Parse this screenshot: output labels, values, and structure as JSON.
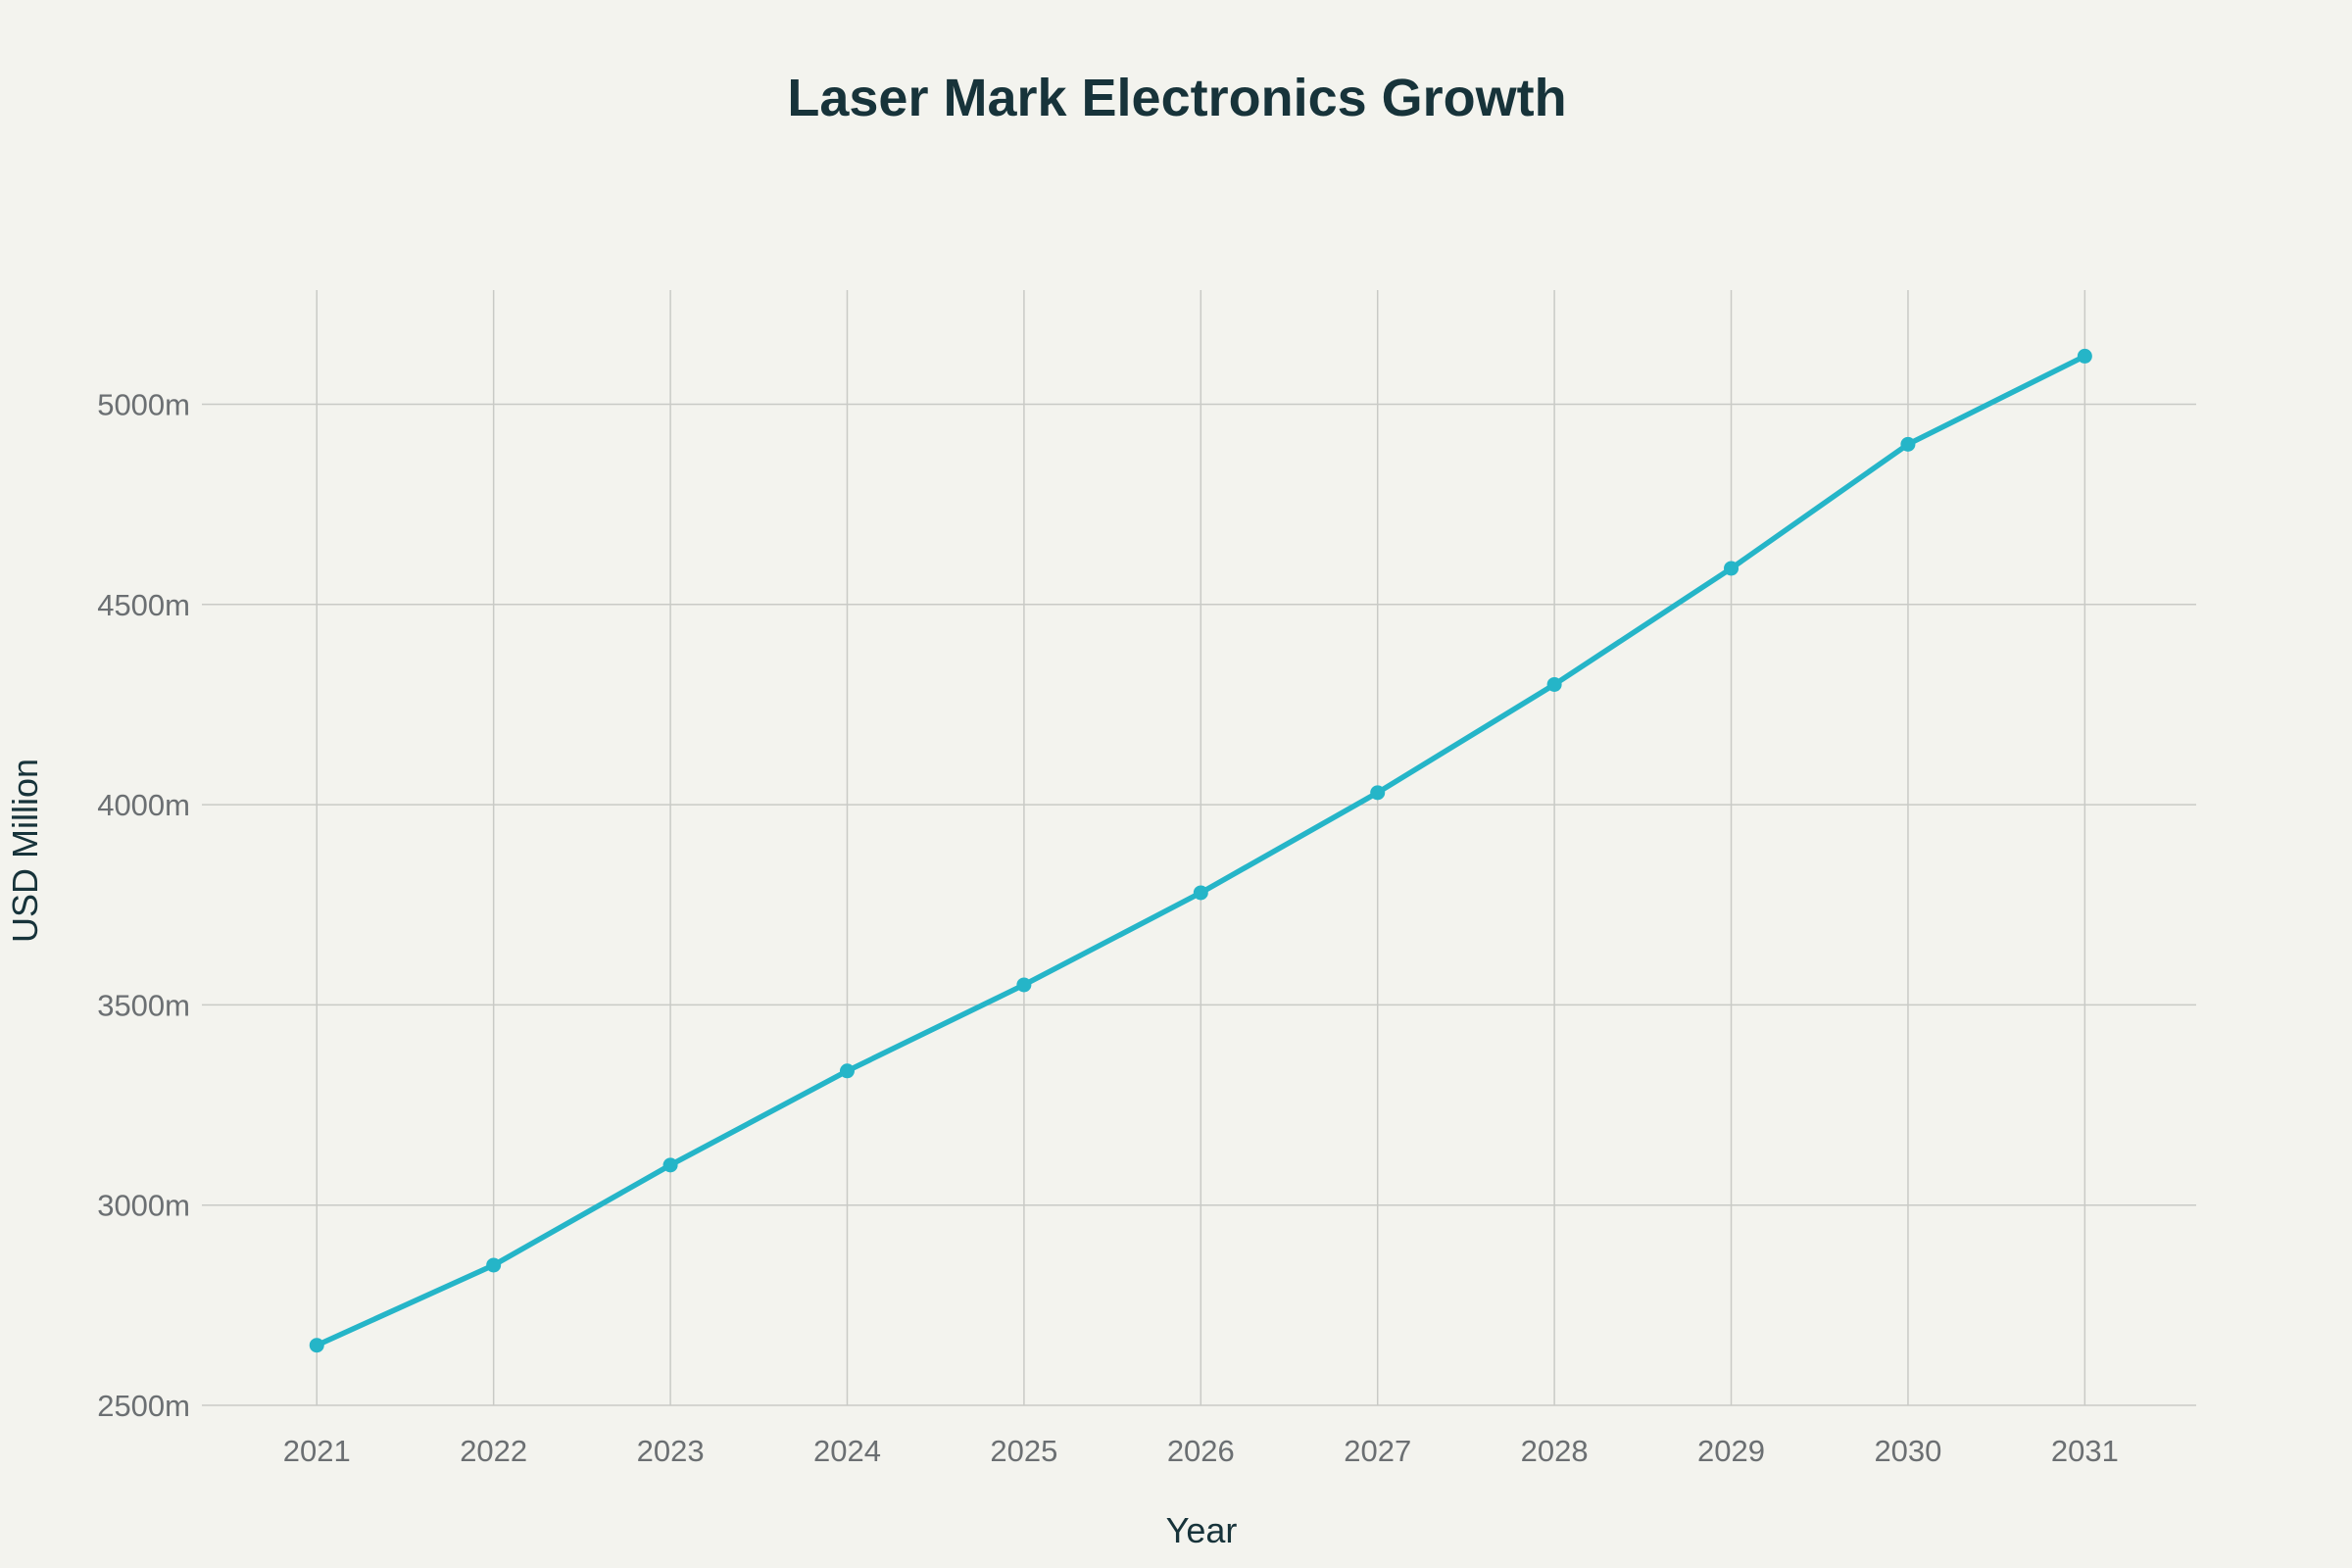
{
  "chart_data": {
    "type": "line",
    "title": "Laser Mark Electronics Growth",
    "xlabel": "Year",
    "ylabel": "USD Million",
    "x": [
      2021,
      2022,
      2023,
      2024,
      2025,
      2026,
      2027,
      2028,
      2029,
      2030,
      2031
    ],
    "series": [
      {
        "values": [
          2650,
          2850,
          3100,
          3335,
          3550,
          3780,
          4030,
          4300,
          4590,
          4900,
          5120
        ],
        "color": "#25b5c8"
      }
    ],
    "y_ticks": [
      2500,
      3000,
      3500,
      4000,
      4500,
      5000
    ],
    "y_tick_labels": [
      "2500m",
      "3000m",
      "3500m",
      "4000m",
      "4500m",
      "5000m"
    ],
    "x_tick_labels": [
      "2021",
      "2022",
      "2023",
      "2024",
      "2025",
      "2026",
      "2027",
      "2028",
      "2029",
      "2030",
      "2031"
    ],
    "xlim": [
      2020.35,
      2031.63
    ],
    "ylim": [
      2500,
      5285
    ],
    "grid": true,
    "legend": "none"
  }
}
